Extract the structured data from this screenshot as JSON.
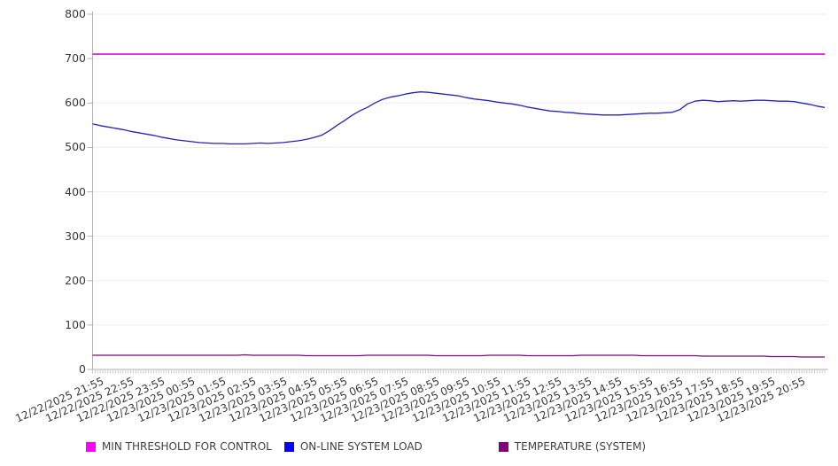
{
  "chart_data": {
    "type": "line",
    "title": "",
    "xlabel": "",
    "ylabel": "",
    "ylim": [
      0,
      800
    ],
    "y_tick_labels": [
      "0",
      "100",
      "200",
      "300",
      "400",
      "500",
      "600",
      "700",
      "800"
    ],
    "grid": "horizontal",
    "legend_position": "bottom",
    "num_points": 97,
    "x_minor_tick_count": 289,
    "x_labels_every_nth_minor_tick": 12,
    "x_tick_labels": [
      "12/22/2025 21:55",
      "12/22/2025 22:55",
      "12/22/2025 23:55",
      "12/23/2025 00:55",
      "12/23/2025 01:55",
      "12/23/2025 02:55",
      "12/23/2025 03:55",
      "12/23/2025 04:55",
      "12/23/2025 05:55",
      "12/23/2025 06:55",
      "12/23/2025 07:55",
      "12/23/2025 08:55",
      "12/23/2025 09:55",
      "12/23/2025 10:55",
      "12/23/2025 11:55",
      "12/23/2025 12:55",
      "12/23/2025 13:55",
      "12/23/2025 14:55",
      "12/23/2025 15:55",
      "12/23/2025 16:55",
      "12/23/2025 17:55",
      "12/23/2025 18:55",
      "12/23/2025 19:55",
      "12/23/2025 20:55"
    ],
    "series": [
      {
        "name": "MIN THRESHOLD FOR CONTROL",
        "swatch_color": "#ff00ff",
        "line_color": "#d411d4",
        "line_width": 1.6,
        "constant": 710
      },
      {
        "name": "ON-LINE SYSTEM LOAD",
        "swatch_color": "#0505f0",
        "line_color": "#2424bd",
        "line_width": 1.3,
        "values": [
          553,
          549,
          546,
          543,
          540,
          536,
          533,
          530,
          527,
          523,
          520,
          517,
          515,
          513,
          511,
          510,
          509,
          509,
          508,
          508,
          508,
          509,
          510,
          509,
          510,
          511,
          513,
          515,
          518,
          522,
          527,
          537,
          549,
          560,
          572,
          582,
          590,
          600,
          608,
          613,
          616,
          620,
          623,
          625,
          624,
          622,
          620,
          618,
          616,
          612,
          609,
          607,
          605,
          602,
          600,
          598,
          595,
          591,
          588,
          585,
          582,
          581,
          579,
          578,
          576,
          575,
          574,
          573,
          573,
          573,
          574,
          575,
          576,
          577,
          577,
          578,
          579,
          585,
          598,
          604,
          606,
          605,
          603,
          604,
          605,
          604,
          605,
          606,
          606,
          605,
          604,
          604,
          603,
          600,
          597,
          593,
          590
        ]
      },
      {
        "name": "TEMPERATURE (SYSTEM)",
        "swatch_color": "#800080",
        "line_color": "#730d73",
        "line_width": 1.2,
        "values": [
          32,
          32,
          32,
          32,
          32,
          32,
          32,
          32,
          32,
          32,
          32,
          32,
          32,
          32,
          32,
          32,
          32,
          32,
          32,
          32,
          33,
          32,
          32,
          32,
          32,
          32,
          32,
          32,
          31,
          31,
          31,
          31,
          31,
          31,
          31,
          31,
          32,
          32,
          32,
          32,
          32,
          32,
          32,
          32,
          32,
          31,
          31,
          31,
          31,
          31,
          31,
          31,
          32,
          32,
          32,
          32,
          32,
          31,
          31,
          31,
          31,
          31,
          31,
          31,
          32,
          32,
          32,
          32,
          32,
          32,
          32,
          32,
          31,
          31,
          31,
          31,
          31,
          31,
          31,
          31,
          30,
          30,
          30,
          30,
          30,
          30,
          30,
          30,
          30,
          29,
          29,
          29,
          29,
          28,
          28,
          28,
          28
        ]
      }
    ],
    "axis_colors": {
      "axis_line": "#b3b3b3",
      "gridline": "#ededed",
      "minor_tick": "#cccccc",
      "tick_label": "#3a3a3a"
    }
  }
}
